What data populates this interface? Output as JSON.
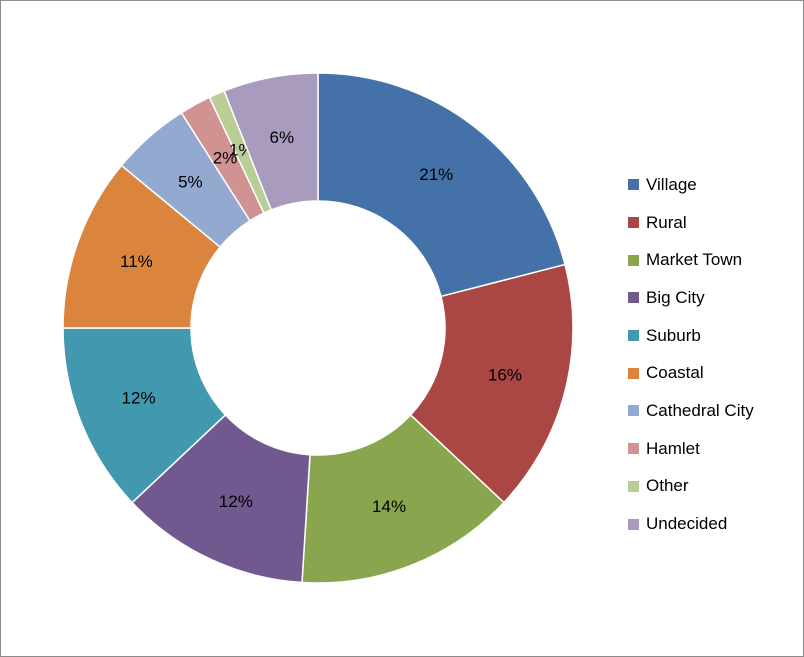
{
  "chart_data": {
    "type": "pie",
    "title": "",
    "donut": true,
    "legend_position": "right",
    "slices": [
      {
        "name": "Village",
        "value": 21,
        "label": "21%",
        "color": "#4472A8"
      },
      {
        "name": "Rural",
        "value": 16,
        "label": "16%",
        "color": "#AA4644"
      },
      {
        "name": "Market Town",
        "value": 14,
        "label": "14%",
        "color": "#89A54E"
      },
      {
        "name": "Big City",
        "value": 12,
        "label": "12%",
        "color": "#71588F"
      },
      {
        "name": "Suburb",
        "value": 12,
        "label": "12%",
        "color": "#4198AF"
      },
      {
        "name": "Coastal",
        "value": 11,
        "label": "11%",
        "color": "#DB843D"
      },
      {
        "name": "Cathedral City",
        "value": 5,
        "label": "5%",
        "color": "#93A9CF"
      },
      {
        "name": "Hamlet",
        "value": 2,
        "label": "2%",
        "color": "#D19392"
      },
      {
        "name": "Other",
        "value": 1,
        "label": "1%",
        "color": "#B9CD96"
      },
      {
        "name": "Undecided",
        "value": 6,
        "label": "6%",
        "color": "#A99BBD"
      }
    ]
  }
}
